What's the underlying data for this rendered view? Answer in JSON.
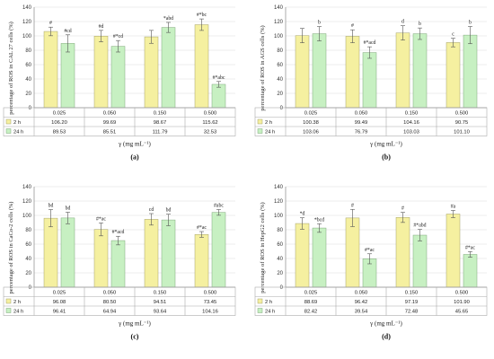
{
  "colors": {
    "h2": "#f5f0a0",
    "h2_stroke": "#a6a26a",
    "h24": "#c7f0c2",
    "h24_stroke": "#7fa87a",
    "grid": "#d9d9d9",
    "axis": "#888888"
  },
  "chart_data": [
    {
      "type": "bar",
      "panel": "(a)",
      "ylabel": "percentage of ROS in CAL 27 cells (%)",
      "xlabel": "γ (mg mL⁻¹)",
      "ylim": [
        0,
        140
      ],
      "yticks": [
        "0",
        "20",
        "40",
        "60",
        "80",
        "100",
        "120",
        "140"
      ],
      "categories": [
        "0.025",
        "0.050",
        "0.150",
        "0.500"
      ],
      "series": [
        {
          "name": "2 h",
          "values": [
            106.2,
            99.69,
            98.67,
            115.62
          ],
          "errors": [
            6,
            8,
            9,
            8
          ],
          "labels": [
            "#",
            "#d",
            "",
            "#*bc"
          ],
          "cells": [
            "106.20",
            "99.69",
            "98.67",
            "115.62"
          ]
        },
        {
          "name": "24 h",
          "values": [
            89.53,
            85.51,
            111.79,
            32.53
          ],
          "errors": [
            12,
            8,
            7,
            4
          ],
          "labels": [
            "#cd",
            "#*cd",
            "*abd",
            "#*abc"
          ],
          "cells": [
            "89.53",
            "85.51",
            "111.79",
            "32.53"
          ]
        }
      ]
    },
    {
      "type": "bar",
      "panel": "(b)",
      "ylabel": "percentage of ROS in AGS cells (%)",
      "xlabel": "γ (mg mL⁻¹)",
      "ylim": [
        0,
        140
      ],
      "yticks": [
        "0",
        "20",
        "40",
        "60",
        "80",
        "100",
        "120",
        "140"
      ],
      "categories": [
        "0.025",
        "0.050",
        "0.150",
        "0.500"
      ],
      "series": [
        {
          "name": "2 h",
          "values": [
            100.38,
            99.49,
            104.16,
            90.75
          ],
          "errors": [
            10,
            9,
            10,
            6
          ],
          "labels": [
            "",
            "#",
            "d",
            "c"
          ],
          "cells": [
            "100.38",
            "99.49",
            "104.16",
            "90.75"
          ]
        },
        {
          "name": "24 h",
          "values": [
            103.06,
            76.79,
            103.03,
            101.1
          ],
          "errors": [
            10,
            8,
            8,
            12
          ],
          "labels": [
            "b",
            "#*acd",
            "b",
            "b"
          ],
          "cells": [
            "103.06",
            "76.79",
            "103.03",
            "101.10"
          ]
        }
      ]
    },
    {
      "type": "bar",
      "panel": "(c)",
      "ylabel": "percentage of ROS in CaCo-2 cells (%)",
      "xlabel": "γ (mg mL⁻¹)",
      "ylim": [
        0,
        140
      ],
      "yticks": [
        "0",
        "20",
        "40",
        "60",
        "80",
        "100",
        "120",
        "140"
      ],
      "categories": [
        "0.025",
        "0.050",
        "0.150",
        "0.500"
      ],
      "series": [
        {
          "name": "2 h",
          "values": [
            96.08,
            80.5,
            94.51,
            73.45
          ],
          "errors": [
            12,
            9,
            8,
            4
          ],
          "labels": [
            "bd",
            "#*ac",
            "cd",
            "#*ac"
          ],
          "cells": [
            "96.08",
            "80.50",
            "94.51",
            "73.45"
          ]
        },
        {
          "name": "24 h",
          "values": [
            96.41,
            64.94,
            93.64,
            104.16
          ],
          "errors": [
            8,
            6,
            8,
            4
          ],
          "labels": [
            "bd",
            "#*acd",
            "bd",
            "#abc"
          ],
          "cells": [
            "96.41",
            "64.94",
            "93.64",
            "104.16"
          ]
        }
      ]
    },
    {
      "type": "bar",
      "panel": "(d)",
      "ylabel": "percentage of ROS in HepG2 cells (%)",
      "xlabel": "γ (mg mL⁻¹)",
      "ylim": [
        0,
        140
      ],
      "yticks": [
        "0",
        "20",
        "40",
        "60",
        "80",
        "100",
        "120",
        "140"
      ],
      "categories": [
        "0.025",
        "0.050",
        "0.150",
        "0.500"
      ],
      "series": [
        {
          "name": "2 h",
          "values": [
            88.69,
            96.42,
            97.19,
            101.9
          ],
          "errors": [
            8,
            12,
            7,
            5
          ],
          "labels": [
            "*d",
            "#",
            "#",
            "#a"
          ],
          "cells": [
            "88.69",
            "96.42",
            "97.19",
            "101.90"
          ]
        },
        {
          "name": "24 h",
          "values": [
            82.42,
            39.54,
            72.48,
            45.65
          ],
          "errors": [
            6,
            7,
            8,
            4
          ],
          "labels": [
            "*bcd",
            "#*ac",
            "#*abd",
            "#*ac"
          ],
          "cells": [
            "82.42",
            "39.54",
            "72.48",
            "45.65"
          ]
        }
      ]
    }
  ]
}
